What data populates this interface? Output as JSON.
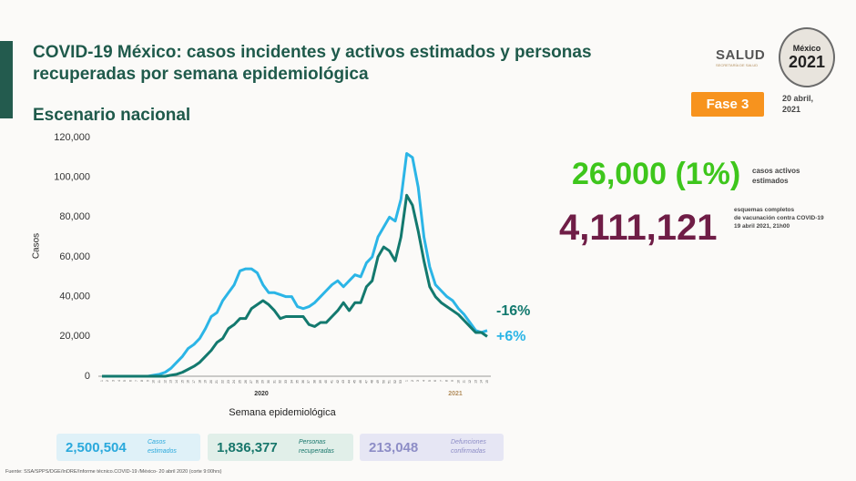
{
  "header": {
    "title": "COVID-19 México: casos incidentes y activos estimados y personas recuperadas por semana epidemiológica",
    "subtitle": "Escenario nacional",
    "logo_text": "SALUD",
    "logo_subtext": "SECRETARÍA DE SALUD",
    "emblem_text": [
      "México",
      "2021"
    ],
    "phase": "Fase 3",
    "date": [
      "20 abril,",
      "2021"
    ]
  },
  "stats": [
    {
      "value": "26,000 (1%)",
      "label": [
        "casos activos",
        "estimados"
      ]
    },
    {
      "value": "4,111,121",
      "label": [
        "esquemas completos",
        "de vacunación contra COVID-19",
        "19 abril 2021, 21h00"
      ]
    }
  ],
  "chart_data": {
    "type": "line",
    "xlabel": "Semana epidemiológica",
    "ylabel": "Casos",
    "year_labels": [
      "2020",
      "2021"
    ],
    "categories": [
      "1",
      "2",
      "3",
      "4",
      "5",
      "6",
      "7",
      "8",
      "9",
      "10",
      "11",
      "12",
      "13",
      "14",
      "15",
      "16",
      "17",
      "18",
      "19",
      "20",
      "21",
      "22",
      "23",
      "24",
      "25",
      "26",
      "27",
      "28",
      "29",
      "30",
      "31",
      "32",
      "33",
      "34",
      "35",
      "36",
      "37",
      "38",
      "39",
      "40",
      "41",
      "42",
      "43",
      "44",
      "45",
      "46",
      "47",
      "48",
      "49",
      "50",
      "51",
      "52",
      "53",
      "1",
      "2",
      "3",
      "4",
      "5",
      "6",
      "7",
      "8",
      "9",
      "10",
      "11",
      "12",
      "13",
      "14",
      "15"
    ],
    "ylim": [
      0,
      120000
    ],
    "yticks": [
      0,
      {
        "value": 20000,
        "label": "20,000"
      },
      {
        "value": 40000,
        "label": "40,000"
      },
      {
        "value": 60000,
        "label": "60,000"
      },
      {
        "value": 80000,
        "label": "80,000"
      },
      {
        "value": 100000,
        "label": "100,000"
      },
      {
        "value": 120000,
        "label": "120,000"
      }
    ],
    "series": [
      {
        "color": "#2bb5e6",
        "end_label": "+6%",
        "values": [
          0,
          0,
          0,
          0,
          0,
          0,
          0,
          0,
          0,
          500,
          1000,
          2000,
          4000,
          7000,
          10000,
          14000,
          16000,
          19000,
          24000,
          30000,
          32000,
          38000,
          42000,
          46000,
          53000,
          54000,
          54000,
          52000,
          46000,
          42000,
          42000,
          41000,
          40000,
          40000,
          35000,
          34000,
          35000,
          37000,
          40000,
          43000,
          46000,
          48000,
          45000,
          48000,
          51000,
          50000,
          57000,
          60000,
          70000,
          75000,
          80000,
          78000,
          89000,
          112000,
          110000,
          95000,
          70000,
          55000,
          46000,
          43000,
          40000,
          38000,
          34000,
          31000,
          27000,
          23000,
          22000,
          23000
        ]
      },
      {
        "color": "#13796e",
        "end_label": "-16%",
        "values": [
          0,
          0,
          0,
          0,
          0,
          0,
          0,
          0,
          0,
          0,
          0,
          0,
          500,
          1000,
          2000,
          3500,
          5000,
          7000,
          10000,
          13000,
          17000,
          19000,
          24000,
          26000,
          29000,
          29000,
          34000,
          36000,
          38000,
          36000,
          33000,
          29000,
          30000,
          30000,
          30000,
          30000,
          26000,
          25000,
          27000,
          27000,
          30000,
          33000,
          37000,
          33000,
          37000,
          37000,
          45000,
          48000,
          60000,
          65000,
          63000,
          58000,
          70000,
          91000,
          86000,
          73000,
          58000,
          45000,
          40000,
          37000,
          35000,
          33000,
          31000,
          28000,
          25000,
          22000,
          22000,
          20000
        ]
      }
    ]
  },
  "summary": [
    {
      "value": "2,500,504",
      "label": [
        "Casos",
        "estimados"
      ]
    },
    {
      "value": "1,836,377",
      "label": [
        "Personas",
        "recuperadas"
      ]
    },
    {
      "value": "213,048",
      "label": [
        "Defunciones",
        "confirmadas"
      ]
    }
  ],
  "footer": "Fuente: SSA/SPPS/DGE/InDRE/Informe técnico.COVID-19 /México- 20 abril 2020 (corte 9:00hrs)"
}
